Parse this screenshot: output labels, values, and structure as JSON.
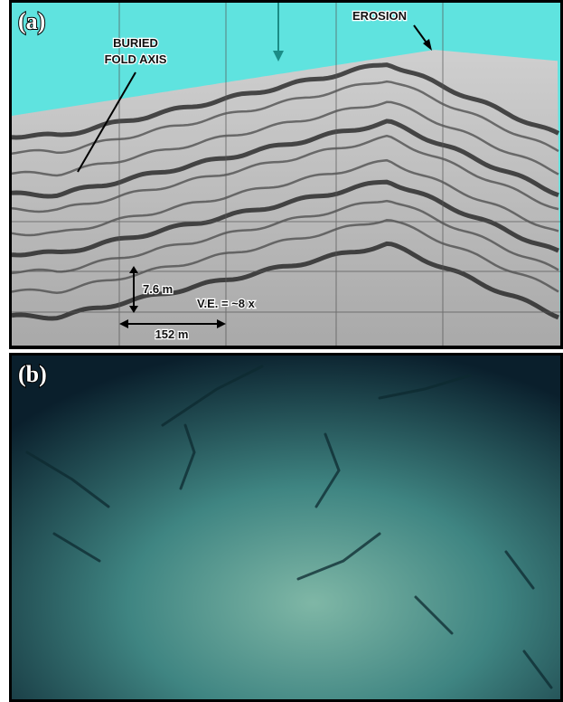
{
  "panel_a": {
    "label": "(a)",
    "annotations": {
      "buried_fold_axis": [
        "BURIED",
        "FOLD AXIS"
      ],
      "erosion": "EROSION"
    },
    "scale": {
      "vertical": "7.6 m",
      "horizontal": "152 m",
      "vertical_exaggeration": "V.E. = ~8 x"
    }
  },
  "panel_b": {
    "label": "(b)"
  }
}
